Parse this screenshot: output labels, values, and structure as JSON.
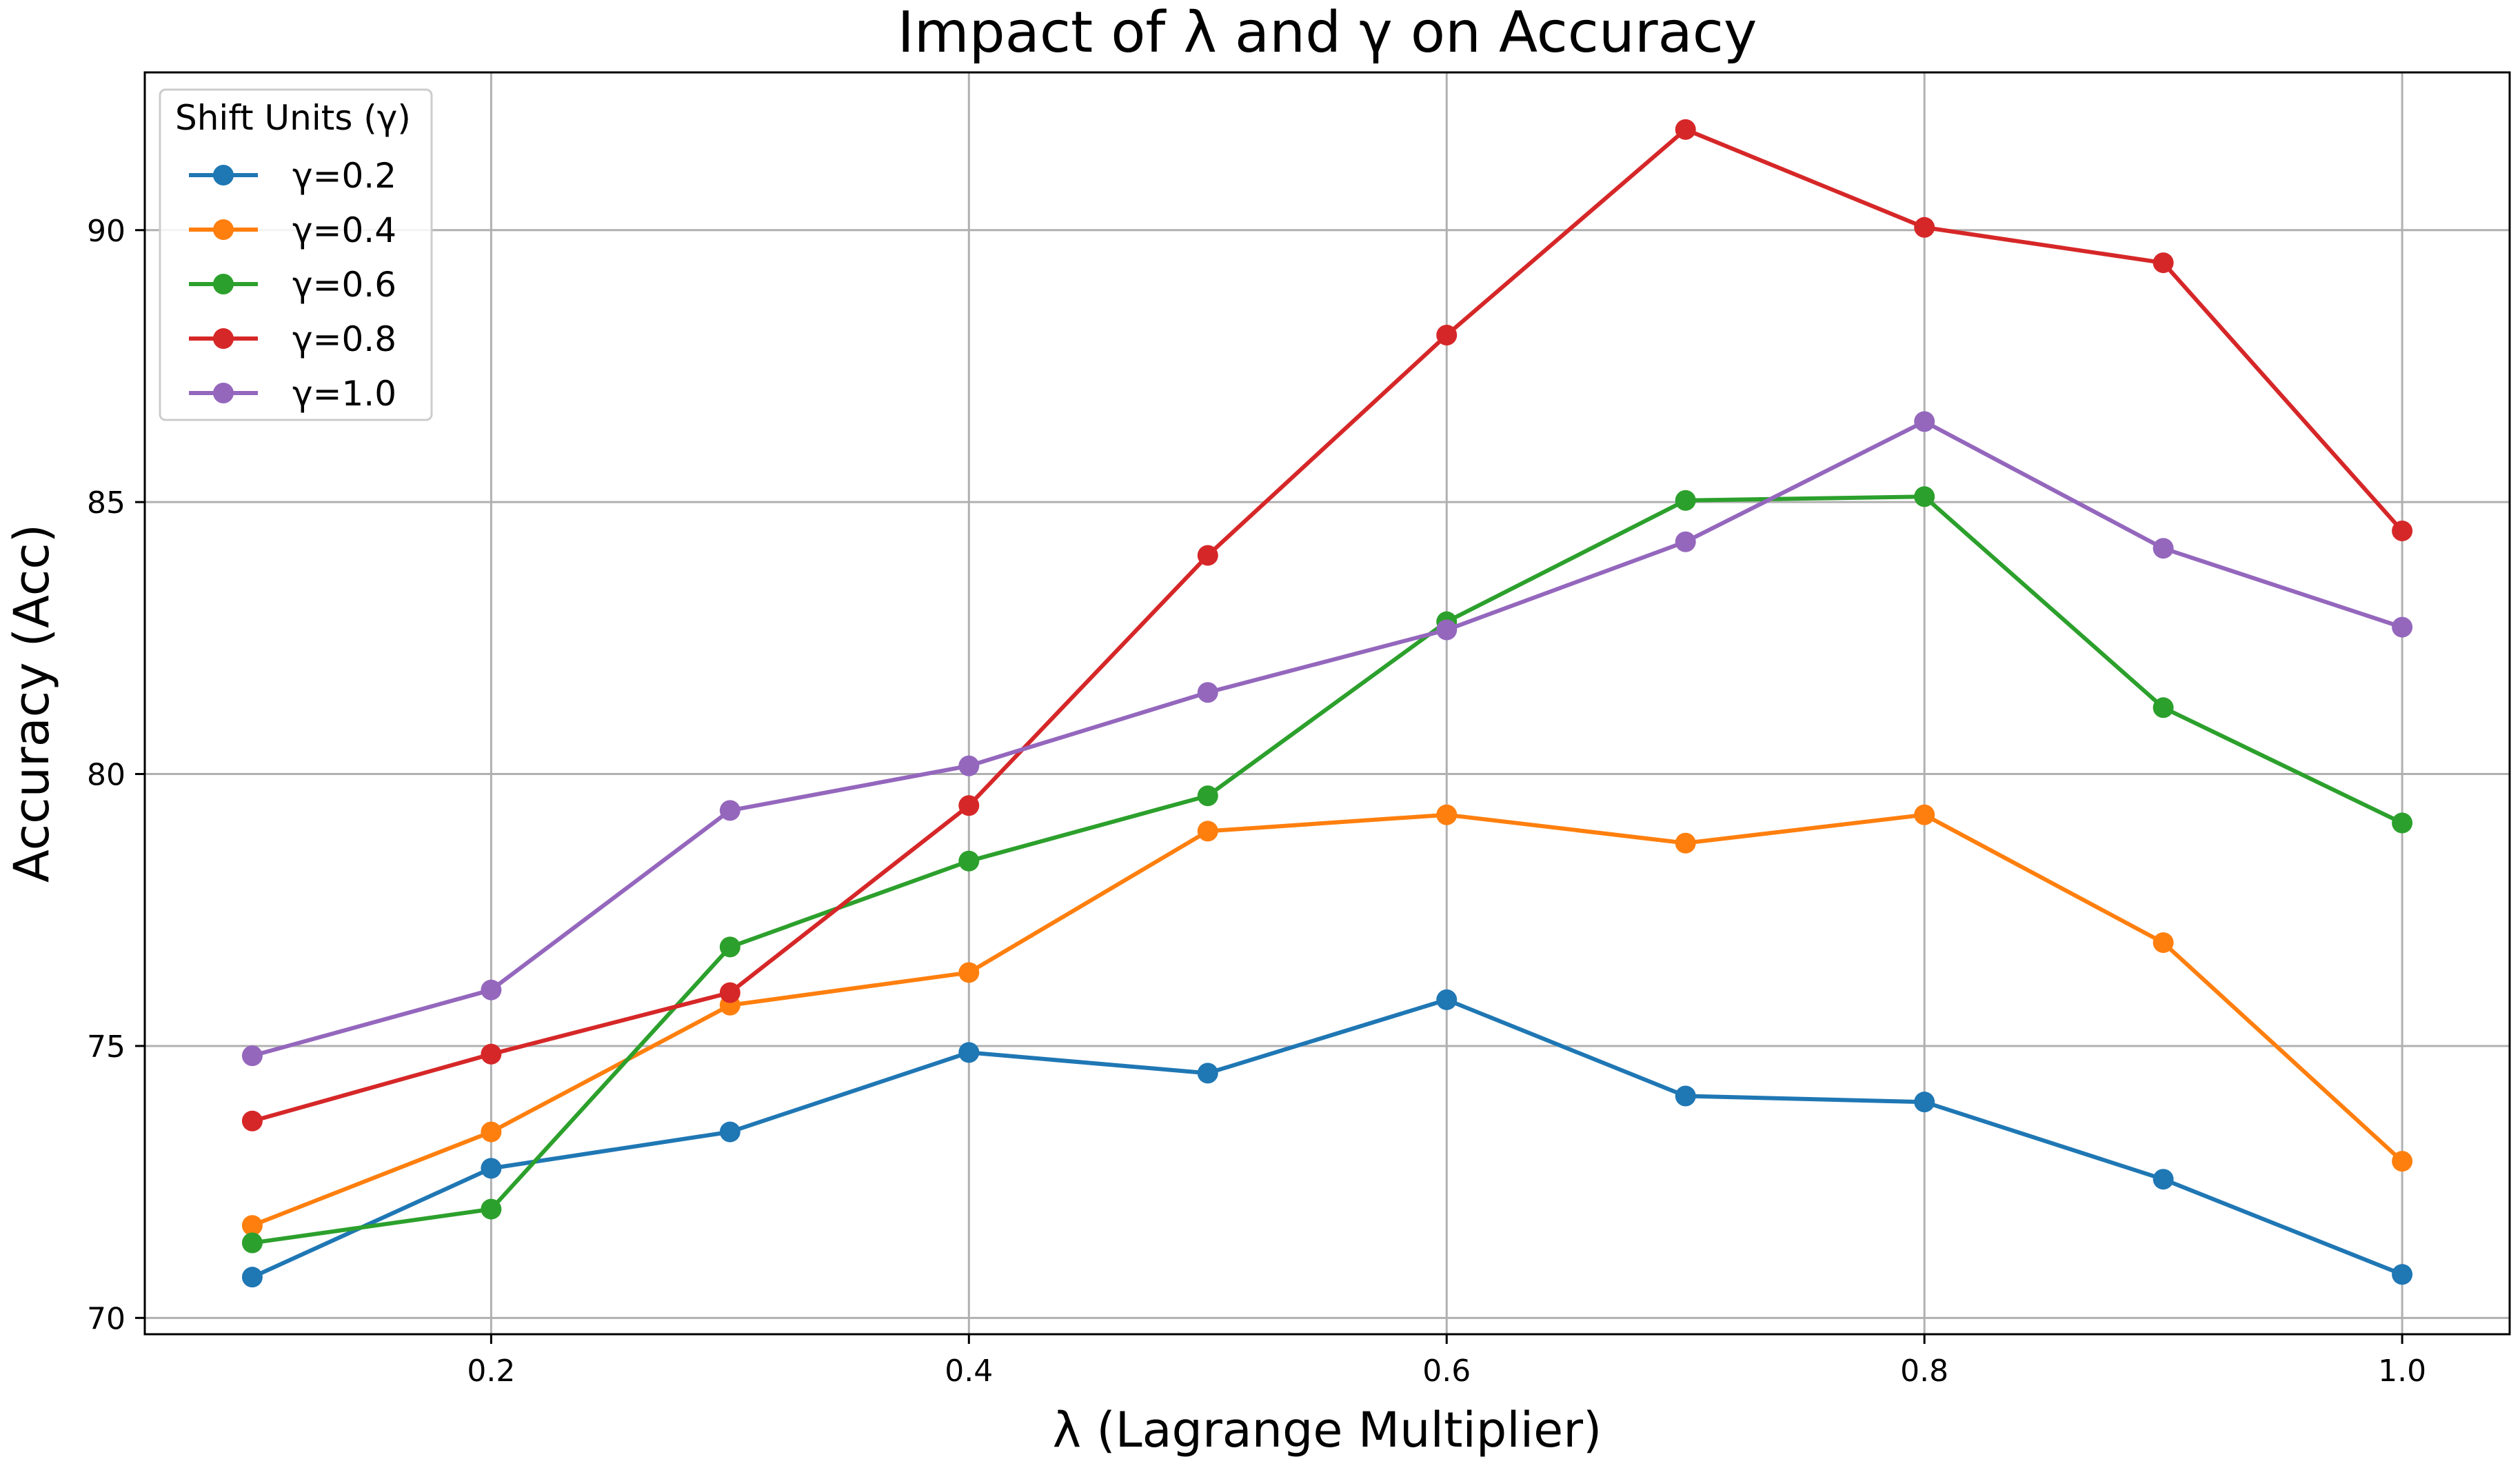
{
  "chart_data": {
    "type": "line",
    "title": "Impact of λ and γ on Accuracy",
    "xlabel": "λ (Lagrange Multiplier)",
    "ylabel": "Accuracy (Acc)",
    "x": [
      0.1,
      0.2,
      0.3,
      0.4,
      0.5,
      0.6,
      0.7,
      0.8,
      0.9,
      1.0
    ],
    "xticks": [
      "0.2",
      "0.4",
      "0.6",
      "0.8",
      "1.0"
    ],
    "yticks": [
      "70",
      "75",
      "80",
      "85",
      "90"
    ],
    "xlim": [
      0.055,
      1.045
    ],
    "ylim": [
      69.7,
      92.9
    ],
    "grid": true,
    "legend": {
      "title": "Shift Units (γ)",
      "placement": "top-left"
    },
    "series": [
      {
        "name": "γ=0.2",
        "color": "#1f77b4",
        "values": [
          70.75,
          72.75,
          73.42,
          74.88,
          74.5,
          75.85,
          74.08,
          73.97,
          72.55,
          70.8
        ]
      },
      {
        "name": "γ=0.4",
        "color": "#ff7f0e",
        "values": [
          71.7,
          73.42,
          75.75,
          76.35,
          78.95,
          79.25,
          78.73,
          79.25,
          76.9,
          72.88
        ]
      },
      {
        "name": "γ=0.6",
        "color": "#2ca02c",
        "values": [
          71.38,
          72.0,
          76.82,
          78.4,
          79.6,
          82.8,
          85.03,
          85.1,
          81.22,
          79.1
        ]
      },
      {
        "name": "γ=0.8",
        "color": "#d62728",
        "values": [
          73.62,
          74.85,
          75.98,
          79.42,
          84.02,
          88.07,
          91.85,
          90.05,
          89.4,
          84.47
        ]
      },
      {
        "name": "γ=1.0",
        "color": "#9467bd",
        "values": [
          74.82,
          76.03,
          79.33,
          80.15,
          81.5,
          82.65,
          84.27,
          86.48,
          84.15,
          82.7
        ]
      }
    ]
  }
}
